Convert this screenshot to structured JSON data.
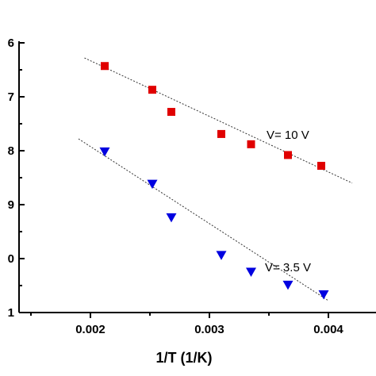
{
  "chart_data": {
    "type": "scatter",
    "xlabel": "1/T (1/K)",
    "ylabel": "",
    "xlim": [
      0.0014,
      0.0044
    ],
    "ylim": [
      1.0,
      6.0
    ],
    "x_ticks": [
      0.002,
      0.003,
      0.004
    ],
    "x_tick_labels": [
      "0.002",
      "0.003",
      "0.004"
    ],
    "y_ticks": [
      1,
      2,
      3,
      4,
      5,
      6
    ],
    "y_tick_labels": [
      "1",
      "0",
      "9",
      "8",
      "7",
      "6"
    ],
    "grid": false,
    "series": [
      {
        "name": "V= 10 V",
        "color": "#e00000",
        "marker": "square",
        "x": [
          0.00212,
          0.00252,
          0.00268,
          0.0031,
          0.00335,
          0.00366,
          0.00394
        ],
        "y": [
          5.57,
          5.13,
          4.72,
          4.31,
          4.12,
          3.92,
          3.72
        ],
        "fit": {
          "x": [
            0.00195,
            0.0042
          ],
          "y": [
            5.72,
            3.4
          ]
        }
      },
      {
        "name": "V= 3.5 V",
        "color": "#0000e0",
        "marker": "triangle-down",
        "x": [
          0.00212,
          0.00252,
          0.00268,
          0.0031,
          0.00335,
          0.00366,
          0.00396
        ],
        "y": [
          3.98,
          3.38,
          2.76,
          2.06,
          1.75,
          1.51,
          1.33
        ],
        "fit": {
          "x": [
            0.0019,
            0.004
          ],
          "y": [
            4.22,
            1.22
          ]
        }
      }
    ]
  }
}
